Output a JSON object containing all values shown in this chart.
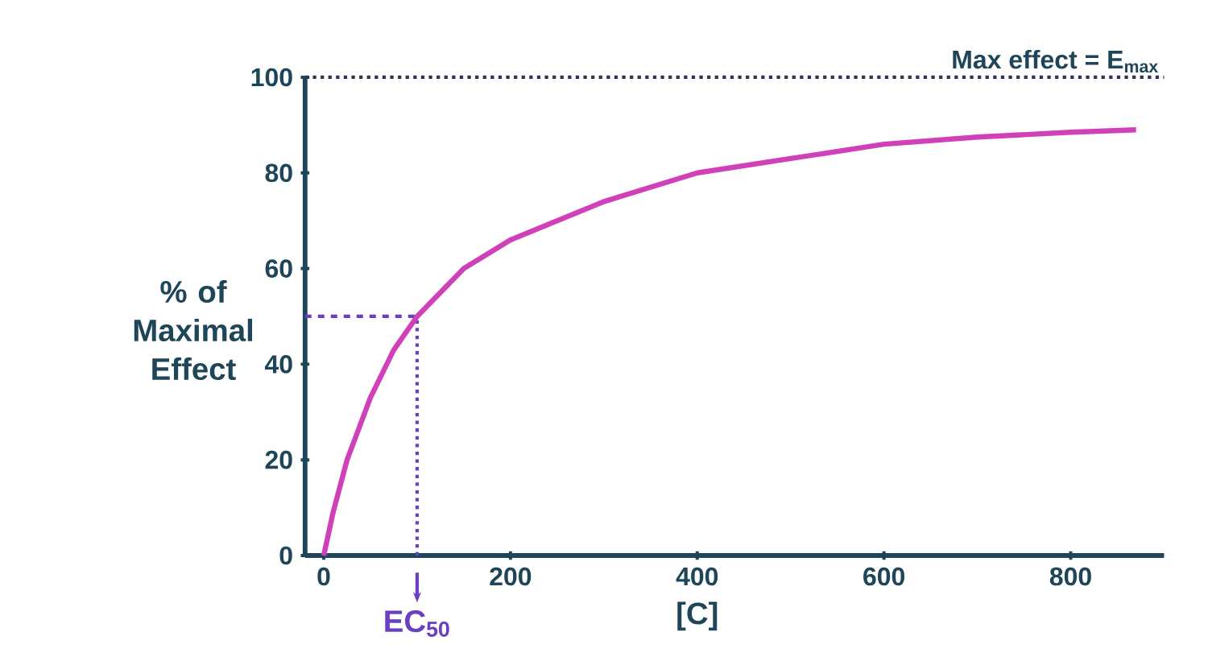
{
  "chart_data": {
    "type": "line",
    "ylabel": "% of Maximal Effect",
    "xlabel": "[C]",
    "x": [
      0,
      10,
      25,
      50,
      75,
      100,
      150,
      200,
      300,
      400,
      500,
      600,
      700,
      800,
      870
    ],
    "series": [
      {
        "color": "#d040b8",
        "values": [
          0,
          9,
          20,
          33,
          43,
          50,
          60,
          66,
          74,
          80,
          83,
          86,
          87.5,
          88.5,
          89
        ]
      }
    ],
    "xlim": [
      -20,
      900
    ],
    "ylim": [
      0,
      100
    ],
    "xticks": [
      0,
      200,
      400,
      600,
      800
    ],
    "yticks": [
      0,
      20,
      40,
      60,
      80,
      100
    ],
    "ref_lines": [
      {
        "axis": "y",
        "value": 100,
        "label": "Max effect = E$_{max}$",
        "color": "#333355",
        "line_style": "dotted"
      },
      {
        "axis": "x",
        "value": 100,
        "label": "EC$_{50}$",
        "color": "#6a3fc0",
        "line_style": "dotted"
      },
      {
        "axis": "y",
        "value": 50,
        "color": "#6a3fc0",
        "line_style": "dashed"
      }
    ],
    "marker": "none",
    "line_style": "solid"
  }
}
